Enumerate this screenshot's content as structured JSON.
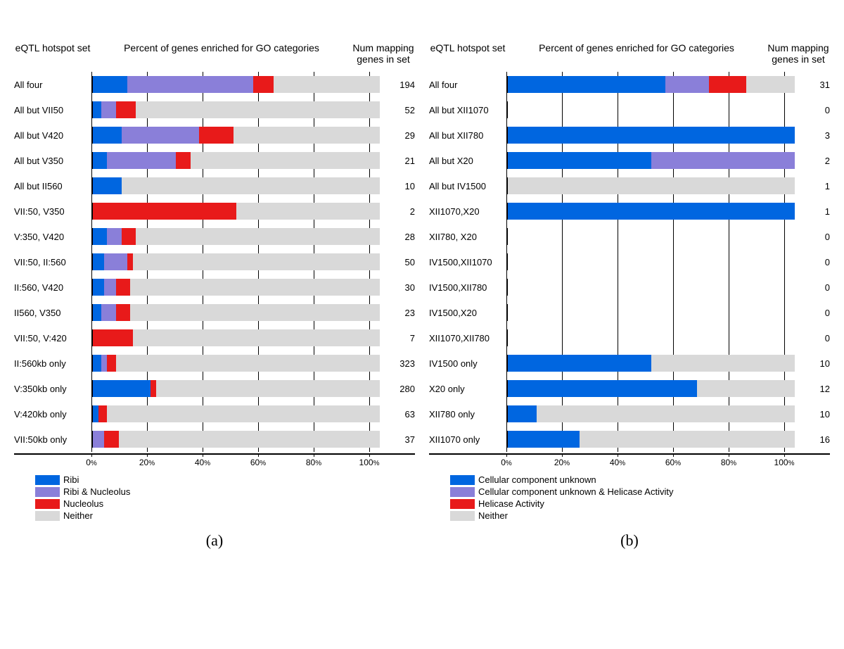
{
  "colors": {
    "blue": "#0066e0",
    "purple": "#8a7fd9",
    "red": "#e81a1a",
    "grey": "#d9d9d9",
    "black": "#000000",
    "white": "#ffffff"
  },
  "x_axis": {
    "ticks": [
      0,
      20,
      40,
      60,
      80,
      100
    ],
    "suffix": "%"
  },
  "panel_a": {
    "headers": {
      "set": "eQTL hotspot set",
      "chart": "Percent of genes enriched for GO categories",
      "num": "Num mapping genes in set"
    },
    "caption": "(a)",
    "legend": [
      {
        "label": "Ribi",
        "color_key": "blue"
      },
      {
        "label": "Ribi & Nucleolus",
        "color_key": "purple"
      },
      {
        "label": "Nucleolus",
        "color_key": "red"
      },
      {
        "label": "Neither",
        "color_key": "grey"
      }
    ],
    "rows": [
      {
        "label": "All four",
        "num": "194",
        "segs": [
          {
            "c": "blue",
            "v": 12
          },
          {
            "c": "purple",
            "v": 44
          },
          {
            "c": "red",
            "v": 7
          },
          {
            "c": "grey",
            "v": 37
          }
        ]
      },
      {
        "label": "All but VII50",
        "num": "52",
        "segs": [
          {
            "c": "blue",
            "v": 3
          },
          {
            "c": "purple",
            "v": 5
          },
          {
            "c": "red",
            "v": 7
          },
          {
            "c": "grey",
            "v": 85
          }
        ]
      },
      {
        "label": "All but V420",
        "num": "29",
        "segs": [
          {
            "c": "blue",
            "v": 10
          },
          {
            "c": "purple",
            "v": 27
          },
          {
            "c": "red",
            "v": 12
          },
          {
            "c": "grey",
            "v": 51
          }
        ]
      },
      {
        "label": "All but V350",
        "num": "21",
        "segs": [
          {
            "c": "blue",
            "v": 5
          },
          {
            "c": "purple",
            "v": 24
          },
          {
            "c": "red",
            "v": 5
          },
          {
            "c": "grey",
            "v": 66
          }
        ]
      },
      {
        "label": "All but II560",
        "num": "10",
        "segs": [
          {
            "c": "blue",
            "v": 10
          },
          {
            "c": "grey",
            "v": 90
          }
        ]
      },
      {
        "label": "VII:50, V350",
        "num": "2",
        "segs": [
          {
            "c": "red",
            "v": 50
          },
          {
            "c": "grey",
            "v": 50
          }
        ]
      },
      {
        "label": "V:350, V420",
        "num": "28",
        "segs": [
          {
            "c": "blue",
            "v": 5
          },
          {
            "c": "purple",
            "v": 5
          },
          {
            "c": "red",
            "v": 5
          },
          {
            "c": "grey",
            "v": 85
          }
        ]
      },
      {
        "label": "VII:50, II:560",
        "num": "50",
        "segs": [
          {
            "c": "blue",
            "v": 4
          },
          {
            "c": "purple",
            "v": 8
          },
          {
            "c": "red",
            "v": 2
          },
          {
            "c": "grey",
            "v": 86
          }
        ]
      },
      {
        "label": "II:560, V420",
        "num": "30",
        "segs": [
          {
            "c": "blue",
            "v": 4
          },
          {
            "c": "purple",
            "v": 4
          },
          {
            "c": "red",
            "v": 5
          },
          {
            "c": "grey",
            "v": 87
          }
        ]
      },
      {
        "label": "II560, V350",
        "num": "23",
        "segs": [
          {
            "c": "blue",
            "v": 3
          },
          {
            "c": "purple",
            "v": 5
          },
          {
            "c": "red",
            "v": 5
          },
          {
            "c": "grey",
            "v": 87
          }
        ]
      },
      {
        "label": "VII:50, V:420",
        "num": "7",
        "segs": [
          {
            "c": "red",
            "v": 14
          },
          {
            "c": "grey",
            "v": 86
          }
        ]
      },
      {
        "label": "II:560kb only",
        "num": "323",
        "segs": [
          {
            "c": "blue",
            "v": 3
          },
          {
            "c": "purple",
            "v": 2
          },
          {
            "c": "red",
            "v": 3
          },
          {
            "c": "grey",
            "v": 92
          }
        ]
      },
      {
        "label": "V:350kb only",
        "num": "280",
        "segs": [
          {
            "c": "blue",
            "v": 20
          },
          {
            "c": "red",
            "v": 2
          },
          {
            "c": "grey",
            "v": 78
          }
        ]
      },
      {
        "label": "V:420kb only",
        "num": "63",
        "segs": [
          {
            "c": "blue",
            "v": 2
          },
          {
            "c": "red",
            "v": 3
          },
          {
            "c": "grey",
            "v": 95
          }
        ]
      },
      {
        "label": "VII:50kb only",
        "num": "37",
        "segs": [
          {
            "c": "purple",
            "v": 4
          },
          {
            "c": "red",
            "v": 5
          },
          {
            "c": "grey",
            "v": 91
          }
        ]
      }
    ]
  },
  "panel_b": {
    "headers": {
      "set": "eQTL hotspot set",
      "chart": "Percent of genes enriched for GO categories",
      "num": "Num mapping genes in set"
    },
    "caption": "(b)",
    "legend": [
      {
        "label": "Cellular component unknown",
        "color_key": "blue"
      },
      {
        "label": "Cellular component unknown & Helicase Activity",
        "color_key": "purple"
      },
      {
        "label": "Helicase Activity",
        "color_key": "red"
      },
      {
        "label": "Neither",
        "color_key": "grey"
      }
    ],
    "rows": [
      {
        "label": "All four",
        "num": "31",
        "segs": [
          {
            "c": "blue",
            "v": 55
          },
          {
            "c": "purple",
            "v": 15
          },
          {
            "c": "red",
            "v": 13
          },
          {
            "c": "grey",
            "v": 17
          }
        ]
      },
      {
        "label": "All but XII1070",
        "num": "0",
        "segs": []
      },
      {
        "label": "All but XII780",
        "num": "3",
        "segs": [
          {
            "c": "blue",
            "v": 100
          }
        ]
      },
      {
        "label": "All but X20",
        "num": "2",
        "segs": [
          {
            "c": "blue",
            "v": 50
          },
          {
            "c": "purple",
            "v": 50
          }
        ]
      },
      {
        "label": "All but IV1500",
        "num": "1",
        "segs": [
          {
            "c": "grey",
            "v": 100
          }
        ]
      },
      {
        "label": "XII1070,X20",
        "num": "1",
        "segs": [
          {
            "c": "blue",
            "v": 100
          }
        ]
      },
      {
        "label": "XII780, X20",
        "num": "0",
        "segs": []
      },
      {
        "label": "IV1500,XII1070",
        "num": "0",
        "segs": []
      },
      {
        "label": "IV1500,XII780",
        "num": "0",
        "segs": []
      },
      {
        "label": "IV1500,X20",
        "num": "0",
        "segs": []
      },
      {
        "label": "XII1070,XII780",
        "num": "0",
        "segs": []
      },
      {
        "label": "IV1500 only",
        "num": "10",
        "segs": [
          {
            "c": "blue",
            "v": 50
          },
          {
            "c": "grey",
            "v": 50
          }
        ]
      },
      {
        "label": "X20 only",
        "num": "12",
        "segs": [
          {
            "c": "blue",
            "v": 66
          },
          {
            "c": "grey",
            "v": 34
          }
        ]
      },
      {
        "label": "XII780 only",
        "num": "10",
        "segs": [
          {
            "c": "blue",
            "v": 10
          },
          {
            "c": "grey",
            "v": 90
          }
        ]
      },
      {
        "label": "XII1070 only",
        "num": "16",
        "segs": [
          {
            "c": "blue",
            "v": 25
          },
          {
            "c": "grey",
            "v": 75
          }
        ]
      }
    ]
  }
}
